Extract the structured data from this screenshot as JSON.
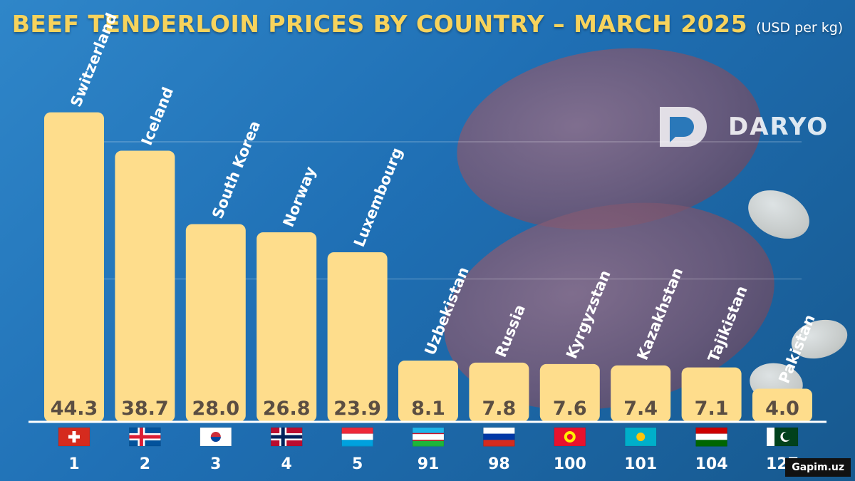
{
  "title": {
    "main": "BEEF TENDERLOIN PRICES BY COUNTRY – MARCH 2025",
    "unit": "(USD per kg)"
  },
  "brand": {
    "name": "DARYO"
  },
  "credit": "Gapim.uz",
  "chart_data": {
    "type": "bar",
    "title": "BEEF TENDERLOIN PRICES BY COUNTRY – MARCH 2025",
    "unit": "USD per kg",
    "ylim": [
      0,
      48
    ],
    "grid": true,
    "categories": [
      "Switzerland",
      "Iceland",
      "South Korea",
      "Norway",
      "Luxembourg",
      "Uzbekistan",
      "Russia",
      "Kyrgyzstan",
      "Kazakhstan",
      "Tajikistan",
      "Pakistan"
    ],
    "values": [
      44.3,
      38.7,
      28.0,
      26.8,
      23.9,
      8.1,
      7.8,
      7.6,
      7.4,
      7.1,
      4.0
    ],
    "value_labels": [
      "44.3",
      "38.7",
      "28.0",
      "26.8",
      "23.9",
      "8.1",
      "7.8",
      "7.6",
      "7.4",
      "7.1",
      "4.0"
    ],
    "ranks": [
      "1",
      "2",
      "3",
      "4",
      "5",
      "91",
      "98",
      "100",
      "101",
      "104",
      "127"
    ],
    "flags": [
      "switzerland-flag",
      "iceland-flag",
      "south-korea-flag",
      "norway-flag",
      "luxembourg-flag",
      "uzbekistan-flag",
      "russia-flag",
      "kyrgyzstan-flag",
      "kazakhstan-flag",
      "tajikistan-flag",
      "pakistan-flag"
    ],
    "bar_color": "#fedd8c",
    "value_color": "#5b4e42"
  }
}
